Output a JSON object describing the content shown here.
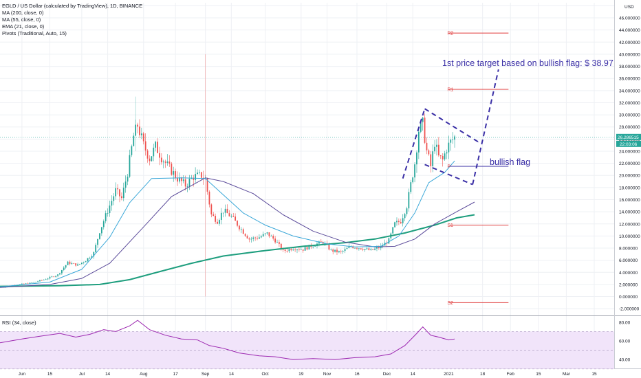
{
  "legend": {
    "symbol": "EGLD / US Dollar (calculated by TradingView), 1D, BINANCE",
    "indicators": [
      "MA (200, close, 0)",
      "MA (55, close, 0)",
      "EMA (21, close, 0)",
      "Pivots (Traditional, Auto, 15)"
    ]
  },
  "currency": "USD",
  "price_tag": "26.286515",
  "time_tag": "22:03:06",
  "annotations": {
    "target": "1st price target based on bullish flag: $ 38.97",
    "flag": "bullish flag"
  },
  "colors": {
    "bull": "#26a69a",
    "bear": "#ef5350",
    "ma200": "#1e9e7e",
    "ma55": "#5b4b9a",
    "ema21": "#3aa7d8",
    "pivot": "#e03c3c",
    "drawing": "#3a2fa6",
    "rsi": "#9c27b0",
    "rsi_band": "#f1e4fa"
  },
  "chart_data": [
    {
      "type": "candlestick",
      "y_tick_labels": [
        "-2.000000",
        "0.000000",
        "2.000000",
        "4.000000",
        "6.000000",
        "8.000000",
        "10.000000",
        "12.000000",
        "14.000000",
        "16.000000",
        "18.000000",
        "20.000000",
        "22.000000",
        "24.000000",
        "26.000000",
        "28.000000",
        "30.000000",
        "32.000000",
        "34.000000",
        "36.000000",
        "38.000000",
        "40.000000",
        "42.000000",
        "44.000000",
        "46.000000",
        "48.000000"
      ],
      "ylim": [
        -3,
        48.5
      ],
      "x_tick_labels": [
        "Jun",
        "15",
        "Jul",
        "14",
        "Aug",
        "17",
        "Sep",
        "14",
        "Oct",
        "19",
        "Nov",
        "16",
        "Dec",
        "14",
        "2021",
        "18",
        "Feb",
        "15",
        "Mar",
        "15"
      ],
      "x_ticks": [
        {
          "label": "Jun",
          "date": "2020-06-01"
        },
        {
          "label": "15",
          "date": "2020-06-15"
        },
        {
          "label": "Jul",
          "date": "2020-07-01"
        },
        {
          "label": "14",
          "date": "2020-07-14"
        },
        {
          "label": "Aug",
          "date": "2020-08-01"
        },
        {
          "label": "17",
          "date": "2020-08-17"
        },
        {
          "label": "Sep",
          "date": "2020-09-01"
        },
        {
          "label": "14",
          "date": "2020-09-14"
        },
        {
          "label": "Oct",
          "date": "2020-10-01"
        },
        {
          "label": "19",
          "date": "2020-10-19"
        },
        {
          "label": "Nov",
          "date": "2020-11-01"
        },
        {
          "label": "16",
          "date": "2020-11-16"
        },
        {
          "label": "Dec",
          "date": "2020-12-01"
        },
        {
          "label": "14",
          "date": "2020-12-14"
        },
        {
          "label": "2021",
          "date": "2021-01-01"
        },
        {
          "label": "18",
          "date": "2021-01-18"
        },
        {
          "label": "Feb",
          "date": "2021-02-01"
        },
        {
          "label": "15",
          "date": "2021-02-15"
        },
        {
          "label": "Mar",
          "date": "2021-03-01"
        },
        {
          "label": "15",
          "date": "2021-03-15"
        }
      ],
      "x_range": [
        "2020-05-21",
        "2021-03-25"
      ],
      "close_series": [
        {
          "date": "2020-05-21",
          "close": 1.6
        },
        {
          "date": "2020-05-29",
          "close": 1.9
        },
        {
          "date": "2020-06-05",
          "close": 2.2
        },
        {
          "date": "2020-06-12",
          "close": 2.8
        },
        {
          "date": "2020-06-19",
          "close": 3.6
        },
        {
          "date": "2020-06-24",
          "close": 5.6
        },
        {
          "date": "2020-06-29",
          "close": 5.2
        },
        {
          "date": "2020-07-03",
          "close": 6.0
        },
        {
          "date": "2020-07-07",
          "close": 7.2
        },
        {
          "date": "2020-07-10",
          "close": 10.8
        },
        {
          "date": "2020-07-14",
          "close": 14.2
        },
        {
          "date": "2020-07-18",
          "close": 17.5
        },
        {
          "date": "2020-07-21",
          "close": 16.2
        },
        {
          "date": "2020-07-24",
          "close": 20.5
        },
        {
          "date": "2020-07-27",
          "close": 26.5
        },
        {
          "date": "2020-07-29",
          "close": 28.3
        },
        {
          "date": "2020-08-01",
          "close": 25.0
        },
        {
          "date": "2020-08-04",
          "close": 22.8
        },
        {
          "date": "2020-08-07",
          "close": 24.8
        },
        {
          "date": "2020-08-10",
          "close": 23.0
        },
        {
          "date": "2020-08-14",
          "close": 21.2
        },
        {
          "date": "2020-08-18",
          "close": 19.5
        },
        {
          "date": "2020-08-22",
          "close": 18.4
        },
        {
          "date": "2020-08-26",
          "close": 19.8
        },
        {
          "date": "2020-08-30",
          "close": 20.0
        },
        {
          "date": "2020-09-01",
          "close": 19.3
        },
        {
          "date": "2020-09-04",
          "close": 13.5
        },
        {
          "date": "2020-09-07",
          "close": 12.5
        },
        {
          "date": "2020-09-10",
          "close": 14.2
        },
        {
          "date": "2020-09-14",
          "close": 13.2
        },
        {
          "date": "2020-09-18",
          "close": 11.5
        },
        {
          "date": "2020-09-23",
          "close": 9.5
        },
        {
          "date": "2020-09-28",
          "close": 9.8
        },
        {
          "date": "2020-10-02",
          "close": 10.4
        },
        {
          "date": "2020-10-06",
          "close": 9.3
        },
        {
          "date": "2020-10-10",
          "close": 7.5
        },
        {
          "date": "2020-10-15",
          "close": 8.0
        },
        {
          "date": "2020-10-20",
          "close": 7.8
        },
        {
          "date": "2020-10-25",
          "close": 8.5
        },
        {
          "date": "2020-10-30",
          "close": 9.0
        },
        {
          "date": "2020-11-03",
          "close": 7.6
        },
        {
          "date": "2020-11-08",
          "close": 7.3
        },
        {
          "date": "2020-11-13",
          "close": 8.3
        },
        {
          "date": "2020-11-18",
          "close": 8.0
        },
        {
          "date": "2020-11-23",
          "close": 7.6
        },
        {
          "date": "2020-11-28",
          "close": 8.2
        },
        {
          "date": "2020-12-02",
          "close": 9.3
        },
        {
          "date": "2020-12-05",
          "close": 12.0
        },
        {
          "date": "2020-12-08",
          "close": 12.5
        },
        {
          "date": "2020-12-11",
          "close": 15.0
        },
        {
          "date": "2020-12-13",
          "close": 18.5
        },
        {
          "date": "2020-12-15",
          "close": 22.0
        },
        {
          "date": "2020-12-17",
          "close": 27.5
        },
        {
          "date": "2020-12-19",
          "close": 28.5
        },
        {
          "date": "2020-12-21",
          "close": 24.0
        },
        {
          "date": "2020-12-23",
          "close": 21.5
        },
        {
          "date": "2020-12-25",
          "close": 25.5
        },
        {
          "date": "2020-12-27",
          "close": 23.0
        },
        {
          "date": "2020-12-29",
          "close": 22.5
        },
        {
          "date": "2020-12-31",
          "close": 24.5
        },
        {
          "date": "2021-01-02",
          "close": 25.5
        },
        {
          "date": "2021-01-04",
          "close": 26.3
        }
      ],
      "ma200": [
        {
          "date": "2020-05-21",
          "v": 1.7
        },
        {
          "date": "2020-06-20",
          "v": 1.8
        },
        {
          "date": "2020-07-10",
          "v": 2.0
        },
        {
          "date": "2020-07-25",
          "v": 2.8
        },
        {
          "date": "2020-08-10",
          "v": 4.2
        },
        {
          "date": "2020-08-25",
          "v": 5.5
        },
        {
          "date": "2020-09-10",
          "v": 6.7
        },
        {
          "date": "2020-10-01",
          "v": 7.6
        },
        {
          "date": "2020-10-20",
          "v": 8.3
        },
        {
          "date": "2020-11-10",
          "v": 8.9
        },
        {
          "date": "2020-11-25",
          "v": 9.5
        },
        {
          "date": "2020-12-10",
          "v": 10.5
        },
        {
          "date": "2020-12-25",
          "v": 11.8
        },
        {
          "date": "2021-01-05",
          "v": 13.0
        },
        {
          "date": "2021-01-14",
          "v": 13.5
        }
      ],
      "ma55": [
        {
          "date": "2020-05-21",
          "v": 1.5
        },
        {
          "date": "2020-06-15",
          "v": 2.0
        },
        {
          "date": "2020-07-01",
          "v": 3.0
        },
        {
          "date": "2020-07-15",
          "v": 5.5
        },
        {
          "date": "2020-08-01",
          "v": 11.5
        },
        {
          "date": "2020-08-15",
          "v": 16.5
        },
        {
          "date": "2020-09-01",
          "v": 19.6
        },
        {
          "date": "2020-09-10",
          "v": 19.0
        },
        {
          "date": "2020-09-25",
          "v": 17.0
        },
        {
          "date": "2020-10-10",
          "v": 13.5
        },
        {
          "date": "2020-10-25",
          "v": 10.8
        },
        {
          "date": "2020-11-10",
          "v": 9.0
        },
        {
          "date": "2020-11-25",
          "v": 8.2
        },
        {
          "date": "2020-12-05",
          "v": 8.3
        },
        {
          "date": "2020-12-15",
          "v": 9.5
        },
        {
          "date": "2020-12-25",
          "v": 12.0
        },
        {
          "date": "2021-01-05",
          "v": 14.0
        },
        {
          "date": "2021-01-14",
          "v": 15.6
        }
      ],
      "ema21": [
        {
          "date": "2020-05-21",
          "v": 1.6
        },
        {
          "date": "2020-06-15",
          "v": 2.4
        },
        {
          "date": "2020-07-01",
          "v": 4.5
        },
        {
          "date": "2020-07-15",
          "v": 9.8
        },
        {
          "date": "2020-07-25",
          "v": 15.5
        },
        {
          "date": "2020-08-05",
          "v": 19.5
        },
        {
          "date": "2020-08-20",
          "v": 19.6
        },
        {
          "date": "2020-09-01",
          "v": 19.5
        },
        {
          "date": "2020-09-10",
          "v": 16.8
        },
        {
          "date": "2020-09-20",
          "v": 13.8
        },
        {
          "date": "2020-10-01",
          "v": 11.8
        },
        {
          "date": "2020-10-15",
          "v": 10.0
        },
        {
          "date": "2020-11-01",
          "v": 8.7
        },
        {
          "date": "2020-11-15",
          "v": 8.2
        },
        {
          "date": "2020-11-28",
          "v": 8.3
        },
        {
          "date": "2020-12-07",
          "v": 10.0
        },
        {
          "date": "2020-12-15",
          "v": 13.8
        },
        {
          "date": "2020-12-22",
          "v": 18.8
        },
        {
          "date": "2020-12-30",
          "v": 20.5
        },
        {
          "date": "2021-01-04",
          "v": 22.4
        }
      ],
      "pivots": [
        {
          "label": "R2",
          "value": 43.5
        },
        {
          "label": "R1",
          "value": 34.2
        },
        {
          "label": "P",
          "value": 21.5
        },
        {
          "label": "S1",
          "value": 11.8
        },
        {
          "label": "S2",
          "value": -1.0
        }
      ],
      "pivot_range": [
        "2021-01-01",
        "2021-01-31"
      ],
      "flag_pole": [
        {
          "date": "2020-12-09",
          "v": 19.5
        },
        {
          "date": "2020-12-20",
          "v": 31.0
        }
      ],
      "flag_upper": [
        {
          "date": "2020-12-20",
          "v": 31.0
        },
        {
          "date": "2021-01-16",
          "v": 25.5
        }
      ],
      "flag_lower": [
        {
          "date": "2020-12-20",
          "v": 21.8
        },
        {
          "date": "2021-01-13",
          "v": 18.5
        }
      ],
      "target_path": [
        {
          "date": "2021-01-13",
          "v": 18.5
        },
        {
          "date": "2021-01-26",
          "v": 37.5
        }
      ],
      "target_price": 38.97,
      "current_price": 26.286515
    },
    {
      "type": "line",
      "title": "RSI (34, close)",
      "y_tick_labels": [
        "40.00",
        "60.00",
        "80.00"
      ],
      "ylim": [
        32,
        85
      ],
      "band": [
        30,
        70
      ],
      "series": [
        {
          "date": "2020-05-21",
          "v": 58
        },
        {
          "date": "2020-06-01",
          "v": 62
        },
        {
          "date": "2020-06-10",
          "v": 65
        },
        {
          "date": "2020-06-20",
          "v": 68
        },
        {
          "date": "2020-06-28",
          "v": 64
        },
        {
          "date": "2020-07-05",
          "v": 67
        },
        {
          "date": "2020-07-12",
          "v": 72
        },
        {
          "date": "2020-07-18",
          "v": 70
        },
        {
          "date": "2020-07-25",
          "v": 76
        },
        {
          "date": "2020-07-29",
          "v": 82
        },
        {
          "date": "2020-08-04",
          "v": 72
        },
        {
          "date": "2020-08-12",
          "v": 66
        },
        {
          "date": "2020-08-20",
          "v": 62
        },
        {
          "date": "2020-08-28",
          "v": 61
        },
        {
          "date": "2020-09-03",
          "v": 55
        },
        {
          "date": "2020-09-10",
          "v": 52
        },
        {
          "date": "2020-09-18",
          "v": 47
        },
        {
          "date": "2020-09-28",
          "v": 44
        },
        {
          "date": "2020-10-06",
          "v": 43
        },
        {
          "date": "2020-10-15",
          "v": 40
        },
        {
          "date": "2020-10-25",
          "v": 41
        },
        {
          "date": "2020-11-05",
          "v": 40
        },
        {
          "date": "2020-11-15",
          "v": 42
        },
        {
          "date": "2020-11-25",
          "v": 43
        },
        {
          "date": "2020-12-03",
          "v": 46
        },
        {
          "date": "2020-12-10",
          "v": 55
        },
        {
          "date": "2020-12-16",
          "v": 68
        },
        {
          "date": "2020-12-19",
          "v": 75
        },
        {
          "date": "2020-12-23",
          "v": 66
        },
        {
          "date": "2020-12-27",
          "v": 64
        },
        {
          "date": "2021-01-01",
          "v": 61
        },
        {
          "date": "2021-01-04",
          "v": 62
        }
      ]
    }
  ]
}
